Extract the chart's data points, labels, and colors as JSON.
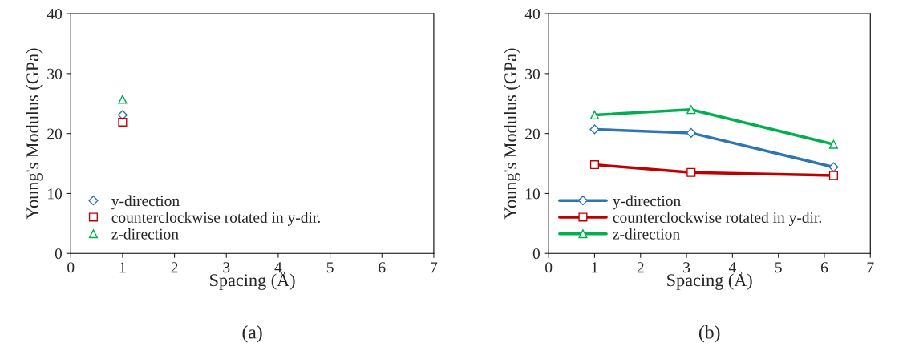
{
  "chart_data": [
    {
      "type": "scatter",
      "xlabel": "Spacing (Å)",
      "ylabel": "Young's Modulus (GPa)",
      "xlim": [
        0,
        7
      ],
      "ylim": [
        0,
        40
      ],
      "xticks": [
        0,
        1,
        2,
        3,
        4,
        5,
        6,
        7
      ],
      "yticks": [
        0,
        10,
        20,
        30,
        40
      ],
      "grid": false,
      "legend": "bottom left",
      "annotations": [
        "(a)"
      ],
      "series": [
        {
          "name": "y-direction",
          "color": "#2e75b6",
          "marker": "diamond",
          "x": [
            1
          ],
          "values": [
            23.1
          ]
        },
        {
          "name": "counterclockwise rotated in y-dir.",
          "color": "#c00000",
          "marker": "square",
          "x": [
            1
          ],
          "values": [
            21.9
          ]
        },
        {
          "name": "z-direction",
          "color": "#00b050",
          "marker": "triangle",
          "x": [
            1
          ],
          "values": [
            25.7
          ]
        }
      ]
    },
    {
      "type": "line",
      "xlabel": "Spacing (Å)",
      "ylabel": "Young's Modulus (GPa)",
      "xlim": [
        0,
        7
      ],
      "ylim": [
        0,
        40
      ],
      "xticks": [
        0,
        1,
        2,
        3,
        4,
        5,
        6,
        7
      ],
      "yticks": [
        0,
        10,
        20,
        30,
        40
      ],
      "grid": false,
      "legend": "bottom left",
      "line_style": "solid",
      "annotations": [
        "(b)"
      ],
      "series": [
        {
          "name": "y-direction",
          "color": "#2e75b6",
          "marker": "diamond",
          "x": [
            1,
            3.1,
            6.2
          ],
          "values": [
            20.7,
            20.1,
            14.4
          ]
        },
        {
          "name": "counterclockwise rotated in y-dir.",
          "color": "#c00000",
          "marker": "square",
          "x": [
            1,
            3.1,
            6.2
          ],
          "values": [
            14.8,
            13.5,
            13.0
          ]
        },
        {
          "name": "z-direction",
          "color": "#00b050",
          "marker": "triangle",
          "x": [
            1,
            3.1,
            6.2
          ],
          "values": [
            23.1,
            24.0,
            18.2
          ]
        }
      ]
    }
  ]
}
